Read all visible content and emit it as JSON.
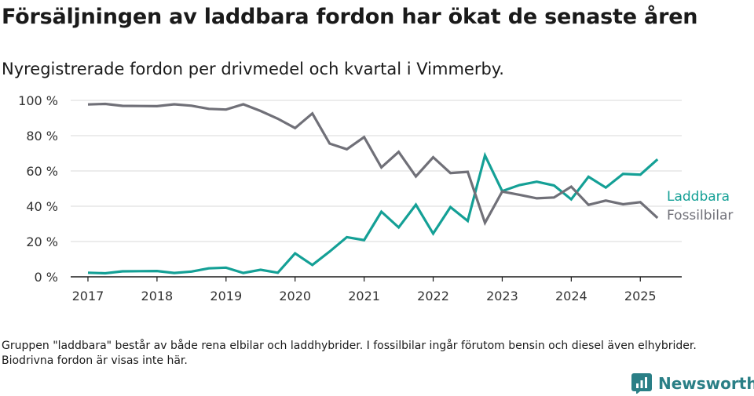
{
  "title": "Försäljningen av laddbara fordon har ökat de senaste åren",
  "subtitle": "Nyregistrerade fordon per drivmedel och kvartal i Vimmerby.",
  "footnote": "Gruppen \"laddbara\" består av både rena elbilar och laddhybrider. I fossilbilar ingår förutom bensin och diesel även elhybrider. Biodrivna fordon är visas inte här.",
  "brand": {
    "name": "Newsworthy",
    "icon": "newsworthy-logo-icon",
    "color": "#2a7f86"
  },
  "chart_data": {
    "type": "line",
    "title": "Försäljningen av laddbara fordon har ökat de senaste åren",
    "xlabel": "",
    "ylabel": "",
    "ylim": [
      0,
      100
    ],
    "xlim": [
      2016.75,
      2025.6
    ],
    "y_ticks": [
      0,
      20,
      40,
      60,
      80,
      100
    ],
    "y_tick_labels": [
      "0 %",
      "20 %",
      "40 %",
      "60 %",
      "80 %",
      "100 %"
    ],
    "x_ticks": [
      2017,
      2018,
      2019,
      2020,
      2021,
      2022,
      2023,
      2024,
      2025
    ],
    "x_tick_labels": [
      "2017",
      "2018",
      "2019",
      "2020",
      "2021",
      "2022",
      "2023",
      "2024",
      "2025"
    ],
    "grid": true,
    "legend": "inline-right",
    "x": [
      2017.0,
      2017.25,
      2017.5,
      2017.75,
      2018.0,
      2018.25,
      2018.5,
      2018.75,
      2019.0,
      2019.25,
      2019.5,
      2019.75,
      2020.0,
      2020.25,
      2020.5,
      2020.75,
      2021.0,
      2021.25,
      2021.5,
      2021.75,
      2022.0,
      2022.25,
      2022.5,
      2022.75,
      2023.0,
      2023.25,
      2023.5,
      2023.75,
      2024.0,
      2024.25,
      2024.5,
      2024.75,
      2025.0,
      2025.25
    ],
    "series": [
      {
        "name": "Laddbara",
        "color": "#14a096",
        "values": [
          2.3,
          2.0,
          3.1,
          3.2,
          3.3,
          2.2,
          3.0,
          4.8,
          5.2,
          2.2,
          4.0,
          2.3,
          13.3,
          6.7,
          14.3,
          22.5,
          20.8,
          36.9,
          28.0,
          40.9,
          24.5,
          39.5,
          31.7,
          68.8,
          48.6,
          52.0,
          53.9,
          51.8,
          43.9,
          56.7,
          50.6,
          58.3,
          57.9,
          66.6
        ]
      },
      {
        "name": "Fossilbilar",
        "color": "#707078",
        "values": [
          97.7,
          98.0,
          96.9,
          96.8,
          96.7,
          97.8,
          97.0,
          95.2,
          94.8,
          97.8,
          94.0,
          89.6,
          84.3,
          92.6,
          75.5,
          72.3,
          79.2,
          62.0,
          70.8,
          56.9,
          67.8,
          58.8,
          59.5,
          30.6,
          48.3,
          46.5,
          44.5,
          45.0,
          51.1,
          40.8,
          43.2,
          41.1,
          42.3,
          33.4
        ]
      }
    ]
  }
}
